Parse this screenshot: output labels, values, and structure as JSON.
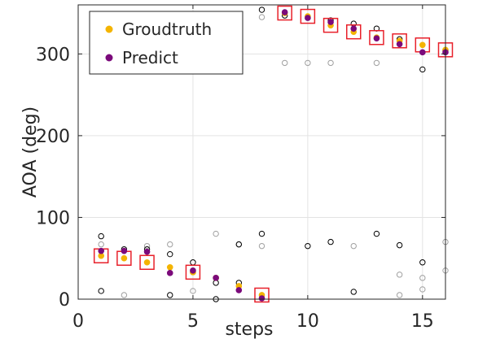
{
  "chart_data": {
    "type": "scatter",
    "xlabel": "steps",
    "ylabel": "AOA (deg)",
    "xlim": [
      0,
      16
    ],
    "ylim": [
      0,
      360
    ],
    "xticks": [
      0,
      5,
      10,
      15
    ],
    "yticks": [
      0,
      100,
      200,
      300
    ],
    "grid": true,
    "legend_position": "top-left",
    "series": [
      {
        "name": "Groudtruth",
        "color": "#F4B400",
        "x": [
          1,
          2,
          3,
          4,
          5,
          6,
          7,
          8,
          9,
          10,
          11,
          12,
          13,
          14,
          15,
          16
        ],
        "y": [
          53,
          50,
          45,
          39,
          33,
          26,
          16,
          5,
          350,
          346,
          335,
          327,
          320,
          316,
          311,
          305
        ]
      },
      {
        "name": "Predict",
        "color": "#7B0A7B",
        "x": [
          1,
          2,
          3,
          4,
          5,
          6,
          7,
          8,
          9,
          10,
          11,
          12,
          13,
          14,
          15,
          16
        ],
        "y": [
          59,
          59,
          58,
          32,
          35,
          26,
          11,
          1,
          351,
          344,
          339,
          331,
          319,
          312,
          302,
          302
        ]
      },
      {
        "color": "#000000",
        "x": [
          1,
          1,
          2,
          3,
          4,
          4,
          5,
          5,
          6,
          6,
          7,
          7,
          8,
          8,
          9,
          10,
          11,
          11,
          12,
          12,
          13,
          13,
          14,
          14,
          15,
          15,
          16
        ],
        "y": [
          77,
          10,
          61,
          61,
          55,
          5,
          45,
          33,
          20,
          0,
          20,
          67,
          80,
          354,
          347,
          65,
          341,
          70,
          337,
          9,
          331,
          80,
          318,
          66,
          281,
          45,
          304
        ]
      },
      {
        "color": "#A0A0A0",
        "x": [
          1,
          2,
          3,
          4,
          5,
          6,
          7,
          8,
          8,
          9,
          10,
          11,
          12,
          13,
          14,
          14,
          15,
          15,
          16,
          16
        ],
        "y": [
          67,
          5,
          65,
          67,
          10,
          80,
          67,
          345,
          65,
          289,
          289,
          289,
          65,
          289,
          30,
          5,
          26,
          12,
          35,
          70
        ]
      }
    ],
    "highlighted_x": [
      1,
      2,
      3,
      4,
      5,
      6,
      7,
      8,
      9,
      10,
      11,
      12,
      13,
      14,
      15,
      16
    ],
    "highlighted_y": [
      53,
      50,
      45,
      39,
      33,
      26,
      16,
      5,
      350,
      346,
      335,
      327,
      320,
      316,
      311,
      305
    ],
    "highlight_indices": [
      0,
      1,
      2,
      4,
      7,
      8,
      9,
      10,
      11,
      12,
      13,
      14,
      15
    ]
  }
}
